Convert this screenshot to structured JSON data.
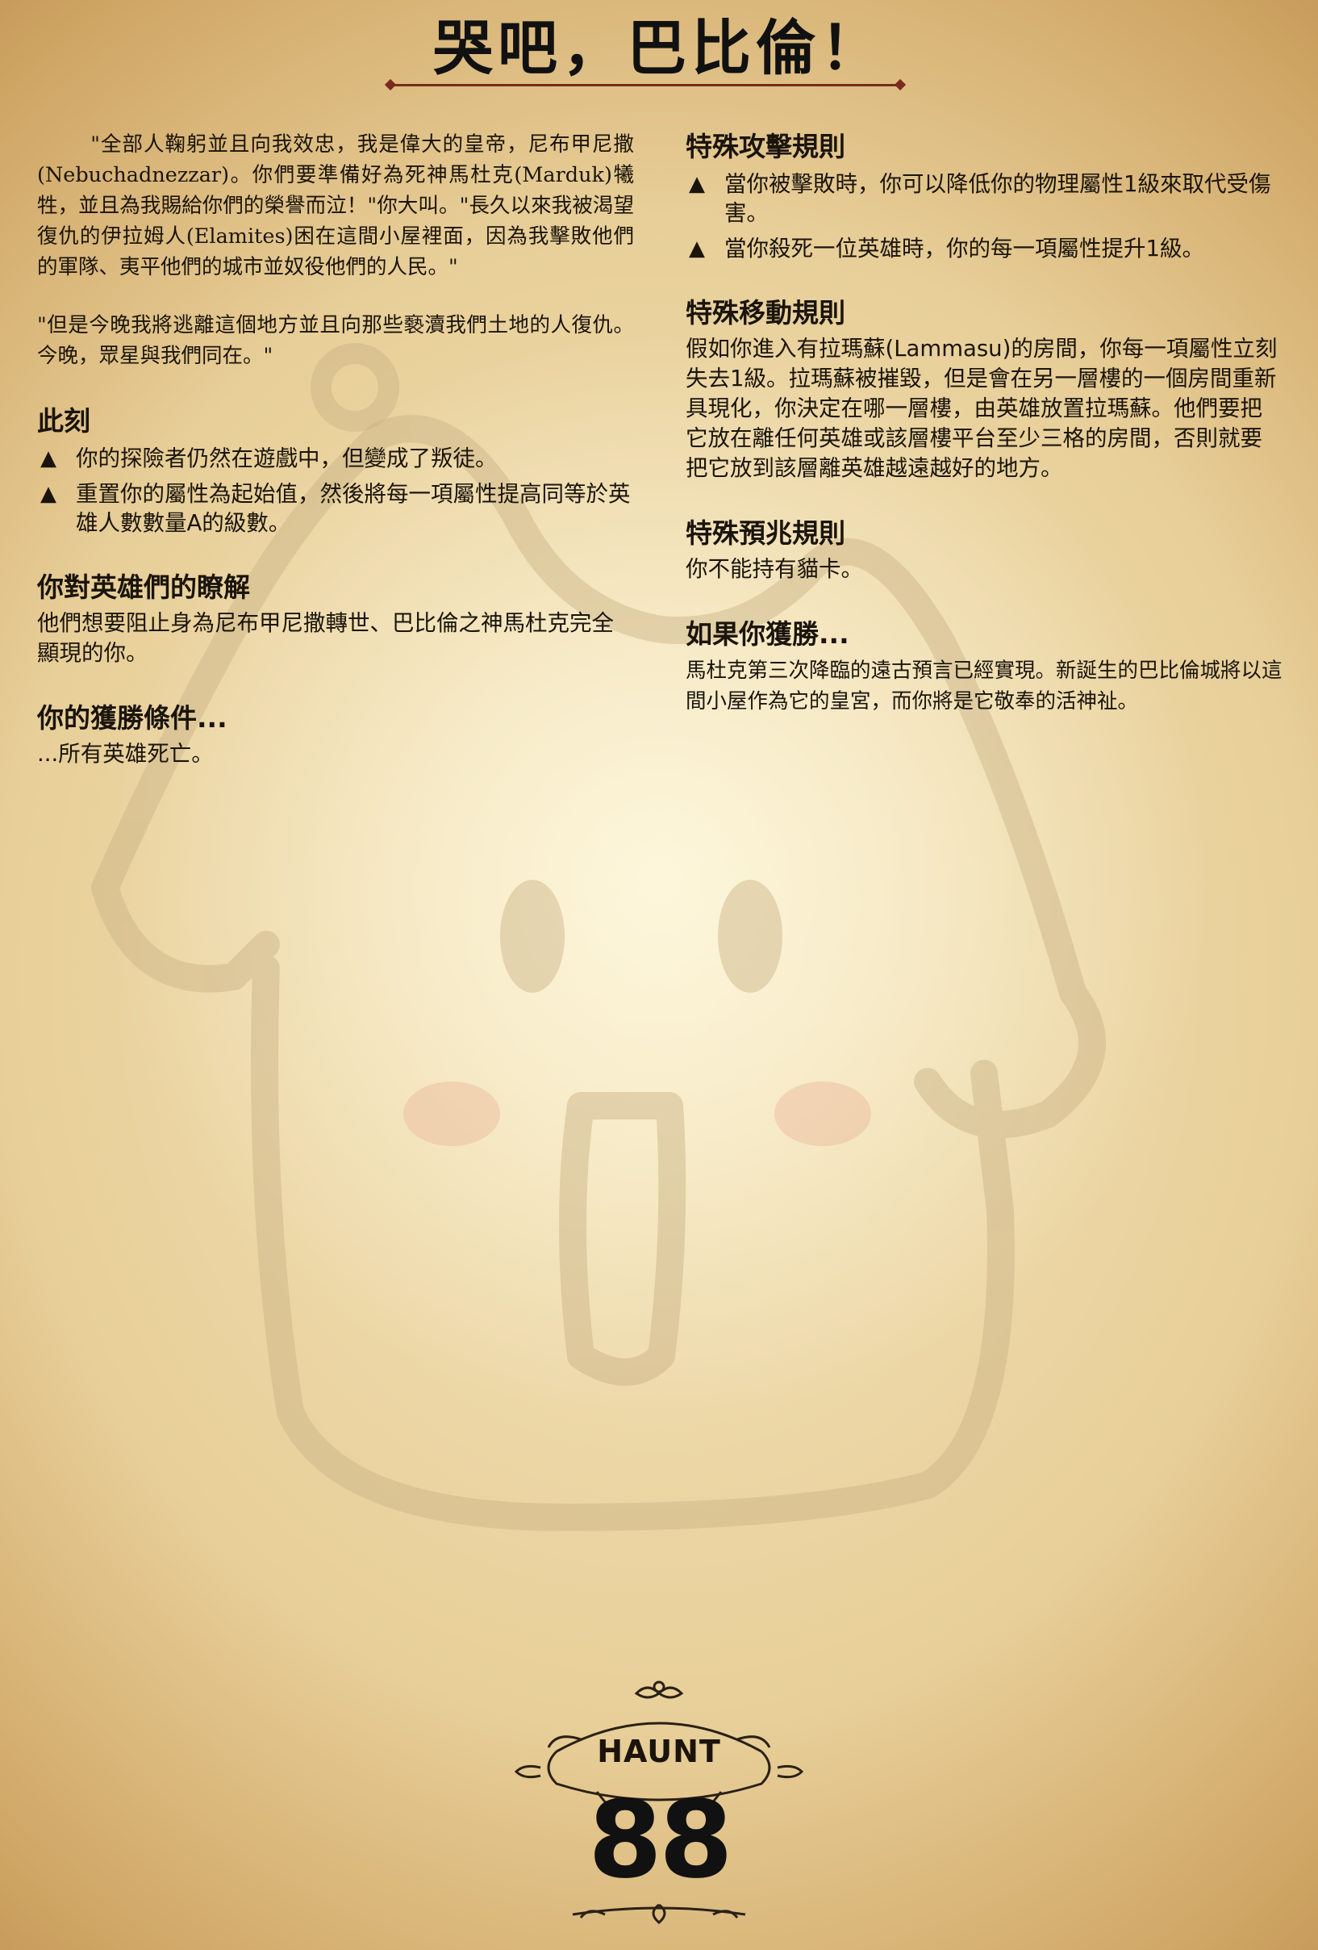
{
  "title": "哭吧，巴比倫！",
  "left": {
    "flavor_1": "\"全部人鞠躬並且向我效忠，我是偉大的皇帝，尼布甲尼撒(Nebuchadnezzar)。你們要準備好為死神馬杜克(Marduk)犧牲，並且為我賜給你們的榮譽而泣！\"你大叫。\"長久以來我被渴望復仇的伊拉姆人(Elamites)困在這間小屋裡面，因為我擊敗他們的軍隊、夷平他們的城市並奴役他們的人民。\"",
    "flavor_2": "\"但是今晚我將逃離這個地方並且向那些褻瀆我們土地的人復仇。今晚，眾星與我們同在。\"",
    "now": {
      "heading": "此刻",
      "items": [
        "你的探險者仍然在遊戲中，但變成了叛徒。",
        "重置你的屬性為起始值，然後將每一項屬性提高同等於英雄人數數量A的級數。"
      ]
    },
    "know": {
      "heading": "你對英雄們的瞭解",
      "text": "他們想要阻止身為尼布甲尼撒轉世、巴比倫之神馬杜克完全顯現的你。"
    },
    "win": {
      "heading": "你的獲勝條件...",
      "text": "...所有英雄死亡。"
    }
  },
  "right": {
    "attack": {
      "heading": "特殊攻擊規則",
      "items": [
        "當你被擊敗時，你可以降低你的物理屬性1級來取代受傷害。",
        "當你殺死一位英雄時，你的每一項屬性提升1級。"
      ]
    },
    "move": {
      "heading": "特殊移動規則",
      "text": "假如你進入有拉瑪蘇(Lammasu)的房間，你每一項屬性立刻失去1級。拉瑪蘇被摧毀，但是會在另一層樓的一個房間重新具現化，你決定在哪一層樓，由英雄放置拉瑪蘇。他們要把它放在離任何英雄或該層樓平台至少三格的房間，否則就要把它放到該層離英雄越遠越好的地方。"
    },
    "omen": {
      "heading": "特殊預兆規則",
      "text": "你不能持有貓卡。"
    },
    "if_win": {
      "heading": "如果你獲勝...",
      "text": "馬杜克第三次降臨的遠古預言已經實現。新誕生的巴比倫城將以這間小屋作為它的皇宮，而你將是它敬奉的活神祉。"
    }
  },
  "bullet_glyph": "▲",
  "footer": {
    "label": "HAUNT",
    "number": "88"
  }
}
